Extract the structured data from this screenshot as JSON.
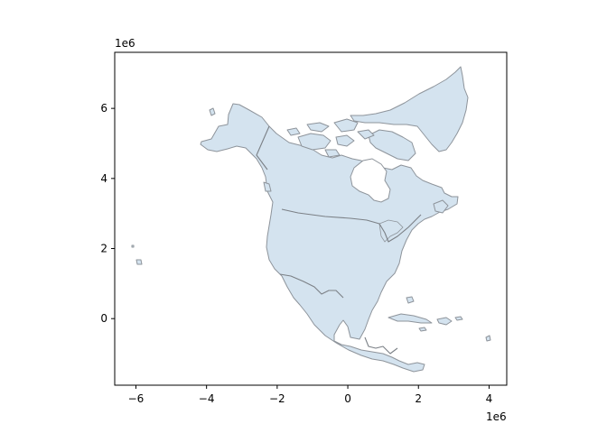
{
  "chart_data": {
    "type": "map",
    "title": "",
    "xlabel": "",
    "ylabel": "",
    "x_offset_label": "1e6",
    "y_offset_label": "1e6",
    "xlim": [
      -6.6,
      4.5
    ],
    "ylim": [
      -1.9,
      7.6
    ],
    "x_ticks": [
      {
        "value": -6,
        "label": "−6"
      },
      {
        "value": -4,
        "label": "−4"
      },
      {
        "value": -2,
        "label": "−2"
      },
      {
        "value": 0,
        "label": "0"
      },
      {
        "value": 2,
        "label": "2"
      },
      {
        "value": 4,
        "label": "4"
      }
    ],
    "y_ticks": [
      {
        "value": 0,
        "label": "0"
      },
      {
        "value": 2,
        "label": "2"
      },
      {
        "value": 4,
        "label": "4"
      },
      {
        "value": 6,
        "label": "6"
      }
    ],
    "grid": false,
    "fill_color": "#d4e3ef",
    "edge_color": "#8e949b",
    "region": "North America"
  }
}
